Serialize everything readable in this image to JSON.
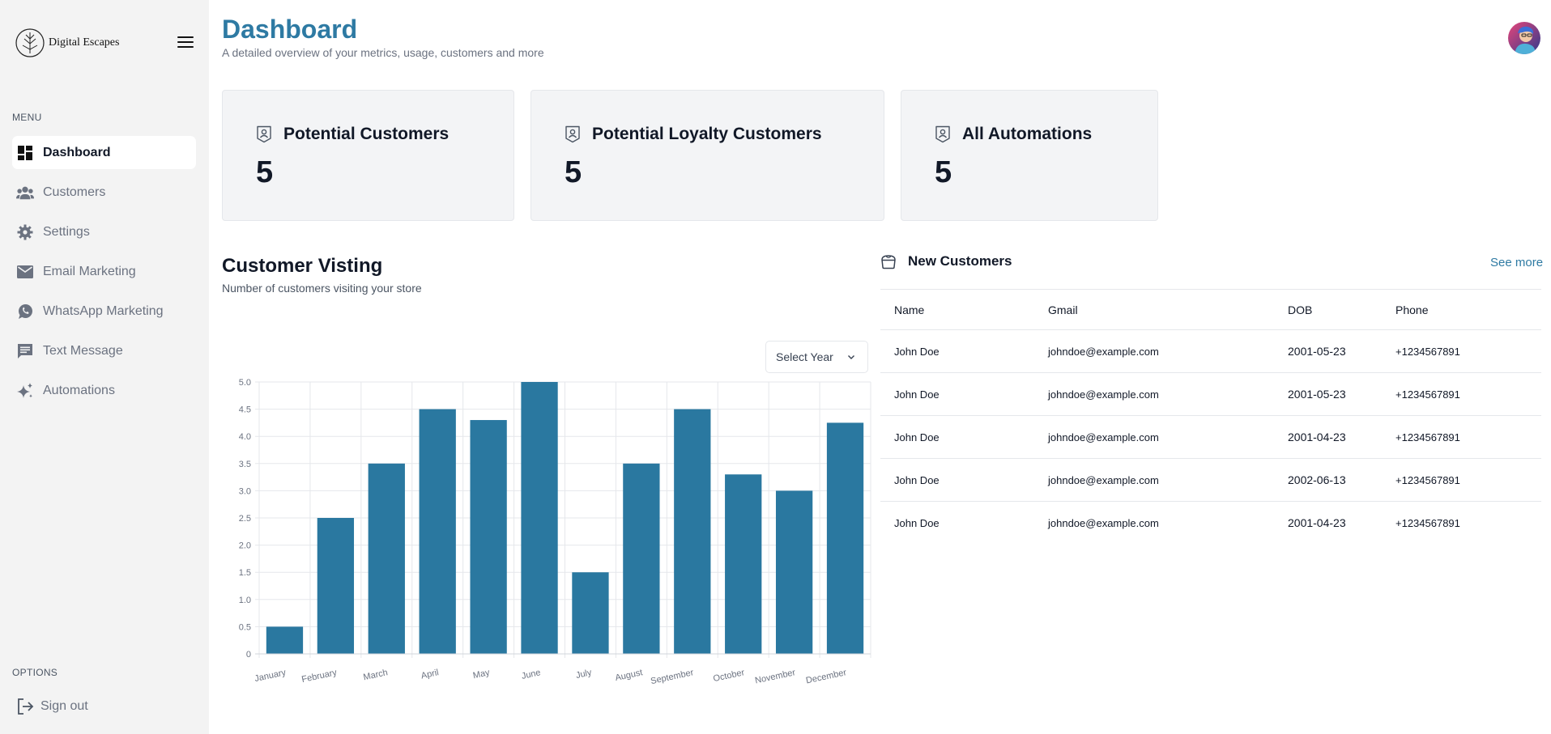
{
  "sidebar": {
    "brand": "Digital Escapes",
    "menu_heading": "MENU",
    "items": [
      {
        "label": "Dashboard",
        "icon": "dashboard-icon",
        "active": true
      },
      {
        "label": "Customers",
        "icon": "users-icon",
        "active": false
      },
      {
        "label": "Settings",
        "icon": "gear-icon",
        "active": false
      },
      {
        "label": "Email Marketing",
        "icon": "mail-icon",
        "active": false
      },
      {
        "label": "WhatsApp Marketing",
        "icon": "whatsapp-icon",
        "active": false
      },
      {
        "label": "Text Message",
        "icon": "message-icon",
        "active": false
      },
      {
        "label": "Automations",
        "icon": "sparkles-icon",
        "active": false
      }
    ],
    "options_heading": "OPTIONS",
    "signout_label": "Sign out"
  },
  "header": {
    "title": "Dashboard",
    "subtitle": "A detailed overview of your metrics, usage, customers and more"
  },
  "cards": [
    {
      "title": "Potential Customers",
      "value": "5"
    },
    {
      "title": "Potential Loyalty Customers",
      "value": "5"
    },
    {
      "title": "All Automations",
      "value": "5"
    }
  ],
  "visiting": {
    "title": "Customer Visting",
    "subtitle": "Number of customers visiting your store",
    "select_label": "Select Year"
  },
  "chart_data": {
    "type": "bar",
    "categories": [
      "January",
      "February",
      "March",
      "April",
      "May",
      "June",
      "July",
      "August",
      "September",
      "October",
      "November",
      "December"
    ],
    "values": [
      0.5,
      2.5,
      3.5,
      4.5,
      4.3,
      5.0,
      1.5,
      3.5,
      4.5,
      3.3,
      3.0,
      4.25
    ],
    "ylim": [
      0,
      5.0
    ],
    "yticks": [
      "0",
      "0.5",
      "1.0",
      "1.5",
      "2.0",
      "2.5",
      "3.0",
      "3.5",
      "4.0",
      "4.5",
      "5.0"
    ],
    "grid": true,
    "bar_color": "#2a78a0"
  },
  "new_customers": {
    "title": "New Customers",
    "see_more": "See more",
    "columns": [
      "Name",
      "Gmail",
      "DOB",
      "Phone"
    ],
    "rows": [
      [
        "John Doe",
        "johndoe@example.com",
        "2001-05-23",
        "+1234567891"
      ],
      [
        "John Doe",
        "johndoe@example.com",
        "2001-05-23",
        "+1234567891"
      ],
      [
        "John Doe",
        "johndoe@example.com",
        "2001-04-23",
        "+1234567891"
      ],
      [
        "John Doe",
        "johndoe@example.com",
        "2002-06-13",
        "+1234567891"
      ],
      [
        "John Doe",
        "johndoe@example.com",
        "2001-04-23",
        "+1234567891"
      ]
    ]
  },
  "colors": {
    "accent": "#2e7aa3",
    "sidebar_bg": "#f3f3f3",
    "card_bg": "#f3f4f6"
  }
}
